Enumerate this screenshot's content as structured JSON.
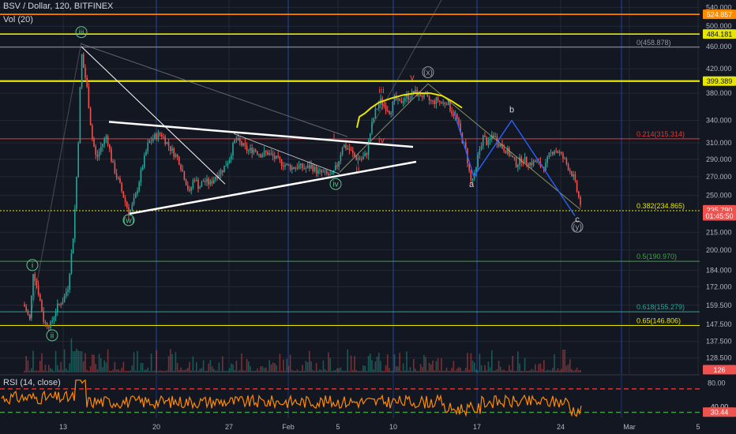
{
  "header": {
    "symbol_line": "BSV / Dollar, 120, BITFINEX",
    "volume_label": "Vol (20)",
    "rsi_label": "RSI (14, close)"
  },
  "colors": {
    "background": "#131722",
    "grid": "#242832",
    "up": "#26a69a",
    "down": "#ef5350",
    "yellow": "#e6e600",
    "orange": "#ff8a00",
    "red": "#e53935",
    "green": "#43a047",
    "blue": "#2962ff",
    "white": "#ffffff",
    "wave_green": "#5ec48e",
    "wave_red": "#ef5350",
    "gray_line": "#9598a1"
  },
  "chart_data": {
    "type": "candlestick",
    "price_axis_ticks": [
      "540.000",
      "500.000",
      "460.000",
      "420.000",
      "380.000",
      "340.000",
      "310.000",
      "290.000",
      "270.000",
      "250.000",
      "215.000",
      "200.000",
      "184.000",
      "172.000",
      "159.500",
      "147.500",
      "137.500",
      "128.500"
    ],
    "time_axis_ticks": [
      "13",
      "20",
      "27",
      "Feb",
      "5",
      "10",
      "17",
      "24",
      "Mar",
      "5"
    ],
    "price_badges": [
      {
        "label": "524.857",
        "value": 524.857,
        "color": "#ff8a00",
        "text_color": "#ffffff"
      },
      {
        "label": "484.181",
        "value": 484.181,
        "color": "#e6e600",
        "text_color": "#131722"
      },
      {
        "label": "399.389",
        "value": 399.389,
        "color": "#e6e600",
        "text_color": "#131722"
      },
      {
        "label": "235.790",
        "value": 235.79,
        "color": "#ef5350",
        "text_color": "#ffffff"
      },
      {
        "label": "01:45:50",
        "value": 230.0,
        "color": "#ef5350",
        "text_color": "#ffffff"
      },
      {
        "label": "126",
        "value": 122.5,
        "color": "#ef5350",
        "text_color": "#ffffff"
      },
      {
        "label": "40.00",
        "value": 40.0,
        "color": "#131722",
        "text_color": "#d1d4dc",
        "pane": "rsi"
      },
      {
        "label": "30.44",
        "value": 30.44,
        "color": "#ef5350",
        "text_color": "#ffffff",
        "pane": "rsi"
      }
    ],
    "rsi_ticks": [
      "80.00",
      "40.00"
    ],
    "horizontal_lines": [
      {
        "value": 524.857,
        "color": "#ff8a00",
        "width": 1.6
      },
      {
        "value": 484.181,
        "color": "#e6e600",
        "width": 1.6
      },
      {
        "value": 458.878,
        "color": "#9598a1",
        "width": 1
      },
      {
        "value": 399.389,
        "color": "#e6e600",
        "width": 2.2
      },
      {
        "value": 315.314,
        "color": "#e53935",
        "width": 1
      },
      {
        "value": 234.865,
        "color": "#e6e600",
        "width": 1,
        "dashed": true
      },
      {
        "value": 190.97,
        "color": "#43a047",
        "width": 1
      },
      {
        "value": 155.279,
        "color": "#26a69a",
        "width": 1
      },
      {
        "value": 146.806,
        "color": "#e6e600",
        "width": 1
      }
    ],
    "fib_labels": [
      {
        "text": "0(458.878)",
        "value": 458.878,
        "color": "#9598a1"
      },
      {
        "text": "0.214(315.314)",
        "value": 315.314,
        "color": "#e53935"
      },
      {
        "text": "0.382(234.865)",
        "value": 234.865,
        "color": "#e6e600"
      },
      {
        "text": "0.5(190.970)",
        "value": 190.97,
        "color": "#43a047"
      },
      {
        "text": "0.618(155.279)",
        "value": 155.279,
        "color": "#26a69a"
      },
      {
        "text": "0.65(146.806)",
        "value": 146.806,
        "color": "#e6e600"
      }
    ],
    "wave_labels": [
      {
        "text": "i",
        "x": 41,
        "value": 188,
        "circled": true,
        "color": "#5ec48e"
      },
      {
        "text": "ii",
        "x": 66,
        "value": 141,
        "circled": true,
        "color": "#5ec48e"
      },
      {
        "text": "iii",
        "x": 103,
        "value": 488,
        "circled": true,
        "color": "#5ec48e"
      },
      {
        "text": "(w)",
        "x": 163,
        "value": 226,
        "circled": true,
        "color": "#5ec48e"
      },
      {
        "text": "iv",
        "x": 425,
        "value": 262,
        "circled": true,
        "color": "#5ec48e"
      },
      {
        "text": "(x)",
        "x": 542,
        "value": 414,
        "circled": true,
        "color": "#9598a1"
      },
      {
        "text": "(y)",
        "x": 731,
        "value": 220,
        "circled": true,
        "color": "#9598a1"
      },
      {
        "text": "iii",
        "x": 483,
        "value": 385,
        "circled": false,
        "color": "#ef5350"
      },
      {
        "text": "v",
        "x": 522,
        "value": 406,
        "circled": false,
        "color": "#ef5350"
      },
      {
        "text": "i",
        "x": 423,
        "value": 320,
        "circled": false,
        "color": "#ef5350"
      },
      {
        "text": "iv",
        "x": 483,
        "value": 314,
        "circled": false,
        "color": "#ef5350"
      },
      {
        "text": "ii",
        "x": 453,
        "value": 279,
        "circled": false,
        "color": "#ef5350"
      },
      {
        "text": "a",
        "x": 597,
        "value": 262,
        "circled": false,
        "color": "#d1d4dc"
      },
      {
        "text": "b",
        "x": 648,
        "value": 356,
        "circled": false,
        "color": "#d1d4dc"
      },
      {
        "text": "c",
        "x": 731,
        "value": 227,
        "circled": false,
        "color": "#d1d4dc"
      }
    ]
  }
}
